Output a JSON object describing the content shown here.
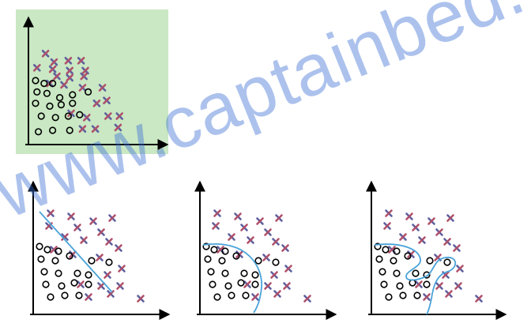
{
  "watermark": {
    "text": "www.captainbed.net"
  },
  "colors": {
    "panel_background": "#c9e8c3",
    "axis": "#000000",
    "circle": "#000000",
    "cross": "#5f5f9e",
    "cross_accent": "#b0506a",
    "boundary": "#4aa3d9",
    "watermark": "#3b6fd6"
  },
  "diagrams": [
    {
      "id": "training-data",
      "role": "training data with two classes",
      "boundary": "none",
      "highlighted": true
    },
    {
      "id": "underfit",
      "role": "linear decision boundary",
      "boundary": "straight-line"
    },
    {
      "id": "good-fit",
      "role": "curved decision boundary",
      "boundary": "smooth-curve"
    },
    {
      "id": "overfit",
      "role": "wiggly decision boundary",
      "boundary": "complex-closed-curve"
    }
  ]
}
